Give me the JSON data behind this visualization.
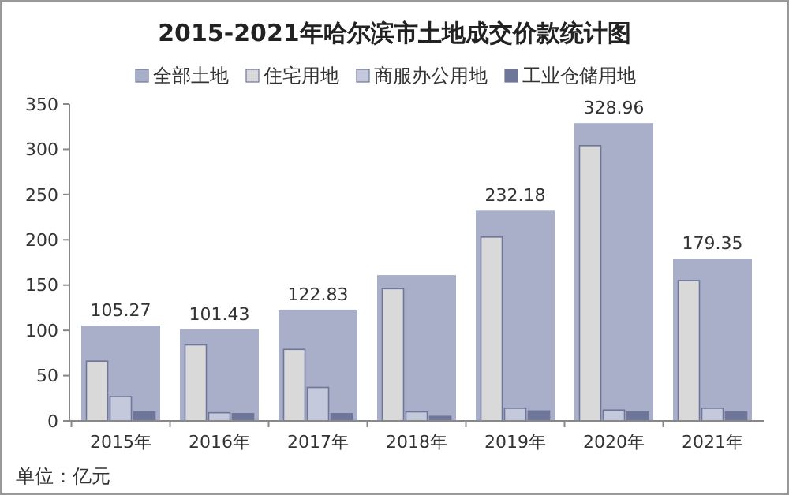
{
  "chart_data": {
    "type": "bar",
    "title": "2015-2021年哈尔滨市土地成交价款统计图",
    "categories": [
      "2015年",
      "2016年",
      "2017年",
      "2018年",
      "2019年",
      "2020年",
      "2021年"
    ],
    "series": [
      {
        "name": "全部土地",
        "color": "#a9aec9",
        "values": [
          105.27,
          101.43,
          122.83,
          161,
          232.18,
          328.96,
          179.35
        ],
        "value_labels": [
          "105.27",
          "101.43",
          "122.83",
          null,
          "232.18",
          "328.96",
          "179.35"
        ]
      },
      {
        "name": "住宅用地",
        "color": "#d9d9d9",
        "values": [
          66,
          84,
          79,
          146,
          203,
          304,
          155
        ]
      },
      {
        "name": "商服办公用地",
        "color": "#c5c9dc",
        "values": [
          27,
          9,
          37,
          10,
          14,
          12,
          14
        ]
      },
      {
        "name": "工业仓储用地",
        "color": "#6e7699",
        "values": [
          10,
          8,
          8,
          5,
          11,
          10,
          10
        ]
      }
    ],
    "ylim": [
      0,
      350
    ],
    "yticks": [
      0,
      50,
      100,
      150,
      200,
      250,
      300,
      350
    ],
    "grid": false,
    "legend": "top",
    "annotations": [
      "单位：亿元"
    ]
  }
}
